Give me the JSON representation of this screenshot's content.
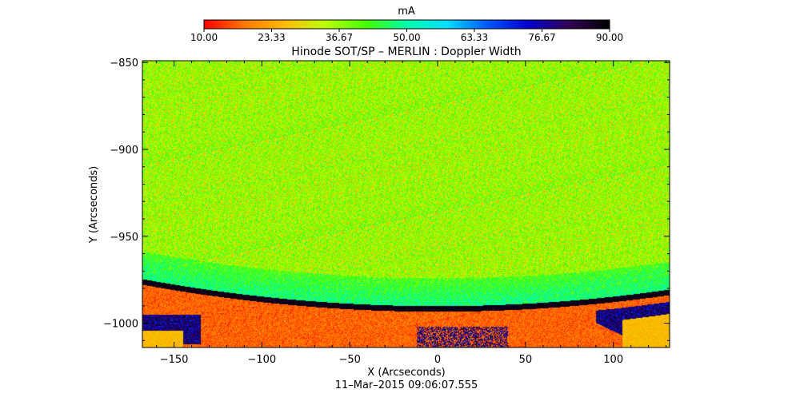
{
  "chart_data": {
    "type": "heatmap",
    "title": "Hinode SOT/SP – MERLIN : Doppler Width",
    "xlabel": "X (Arcseconds)",
    "ylabel": "Y (Arcseconds)",
    "timestamp": "11–Mar–2015 09:06:07.555",
    "xlim": [
      -168,
      132
    ],
    "ylim": [
      -1014,
      -849
    ],
    "x_ticks": [
      -150,
      -100,
      -50,
      0,
      50,
      100
    ],
    "x_tick_labels": [
      "−150",
      "−100",
      "−50",
      "0",
      "50",
      "100"
    ],
    "y_ticks": [
      -850,
      -900,
      -950,
      -1000
    ],
    "y_tick_labels": [
      "−850",
      "−900",
      "−950",
      "−1000"
    ],
    "colorbar": {
      "unit": "mA",
      "range": [
        10,
        90
      ],
      "ticks": [
        10,
        23.33,
        36.67,
        50,
        63.33,
        76.67,
        90
      ],
      "tick_labels": [
        "10.00",
        "23.33",
        "36.67",
        "50.00",
        "63.33",
        "76.67",
        "90.00"
      ]
    },
    "regions": [
      {
        "name": "disk",
        "typical_value": 36
      },
      {
        "name": "limb band",
        "typical_value": 88
      },
      {
        "name": "off-limb",
        "typical_value": 17
      },
      {
        "name": "corners",
        "typical_value": 26
      }
    ],
    "colors": {
      "colormap": [
        "#ff0000",
        "#ff7700",
        "#ffbb00",
        "#bbff00",
        "#44ff00",
        "#00ffaa",
        "#00ddff",
        "#0055ff",
        "#0000cc",
        "#330055",
        "#000000"
      ]
    }
  }
}
